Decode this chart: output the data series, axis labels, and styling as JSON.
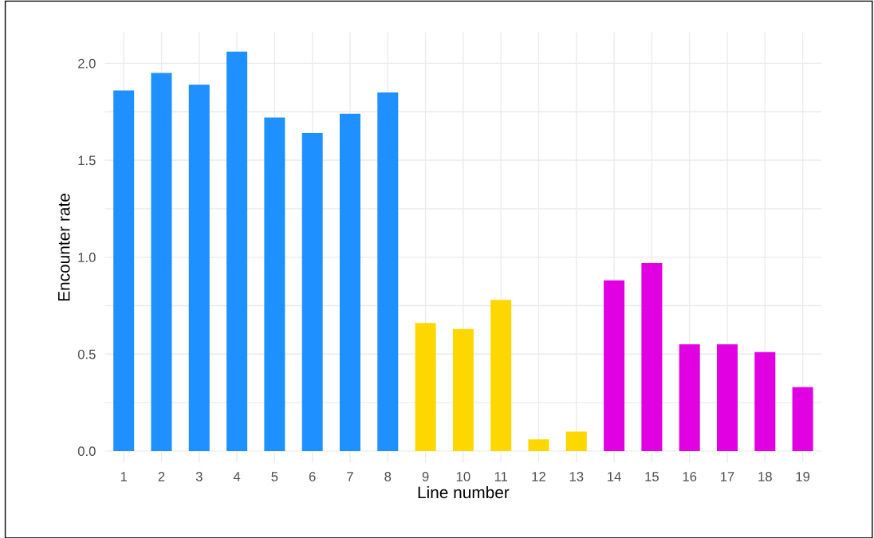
{
  "chart_data": {
    "type": "bar",
    "xlabel": "Line number",
    "ylabel": "Encounter rate",
    "categories": [
      "1",
      "2",
      "3",
      "4",
      "5",
      "6",
      "7",
      "8",
      "9",
      "10",
      "11",
      "12",
      "13",
      "14",
      "15",
      "16",
      "17",
      "18",
      "19"
    ],
    "values": [
      1.86,
      1.95,
      1.89,
      2.06,
      1.72,
      1.64,
      1.74,
      1.85,
      0.66,
      0.63,
      0.78,
      0.06,
      0.1,
      0.88,
      0.97,
      0.55,
      0.55,
      0.51,
      0.33
    ],
    "colors": [
      "#1e90ff",
      "#1e90ff",
      "#1e90ff",
      "#1e90ff",
      "#1e90ff",
      "#1e90ff",
      "#1e90ff",
      "#1e90ff",
      "#ffd700",
      "#ffd700",
      "#ffd700",
      "#ffd700",
      "#ffd700",
      "#e100e1",
      "#e100e1",
      "#e100e1",
      "#e100e1",
      "#e100e1",
      "#e100e1"
    ],
    "ylim": [
      -0.06,
      2.16
    ],
    "yticks": [
      {
        "value": 0,
        "label": "0.0"
      },
      {
        "value": 0.25,
        "label": null
      },
      0.5,
      {
        "value": 0.75,
        "label": null
      },
      {
        "value": 1,
        "label": "1.0"
      },
      {
        "value": 1.25,
        "label": null
      },
      1.5,
      {
        "value": 1.75,
        "label": null
      },
      {
        "value": 2,
        "label": "2.0"
      }
    ],
    "grid": true
  }
}
